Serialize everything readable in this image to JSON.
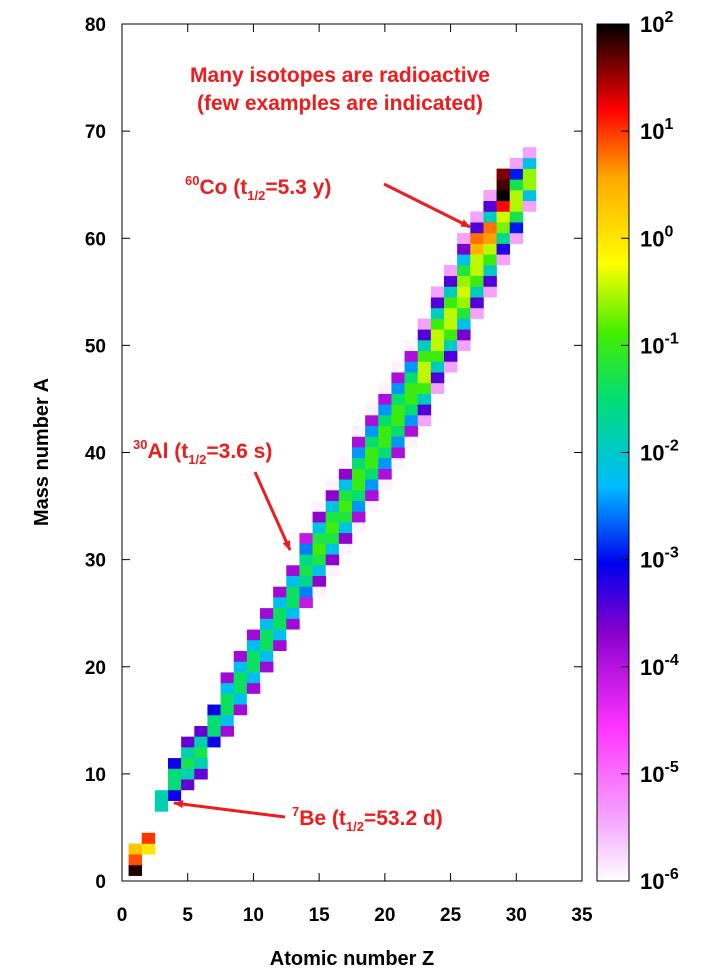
{
  "chart_data": {
    "type": "heatmap",
    "xlabel": "Atomic number Z",
    "ylabel": "Mass number A",
    "xlim": [
      0,
      35
    ],
    "ylim": [
      0,
      80
    ],
    "xticks": [
      "0",
      "5",
      "10",
      "15",
      "20",
      "25",
      "30",
      "35"
    ],
    "yticks": [
      "0",
      "10",
      "20",
      "30",
      "40",
      "50",
      "60",
      "70",
      "80"
    ],
    "colorbar": {
      "scale": "log",
      "range": [
        1e-06,
        100
      ],
      "labels": [
        {
          "base": "10",
          "exp": "2"
        },
        {
          "base": "10",
          "exp": "1"
        },
        {
          "base": "10",
          "exp": "0"
        },
        {
          "base": "10",
          "exp": "-1"
        },
        {
          "base": "10",
          "exp": "-2"
        },
        {
          "base": "10",
          "exp": "-3"
        },
        {
          "base": "10",
          "exp": "-4"
        },
        {
          "base": "10",
          "exp": "-5"
        },
        {
          "base": "10",
          "exp": "-6"
        }
      ],
      "colors": [
        "#ffffff",
        "#f5a8ff",
        "#ff33ff",
        "#8800cc",
        "#0000ee",
        "#00bbff",
        "#00dd77",
        "#44ee00",
        "#ffff00",
        "#ffaa00",
        "#ff0000",
        "#000000"
      ]
    },
    "band": [
      {
        "z": 1,
        "a_min": 1,
        "a_max": 3
      },
      {
        "z": 2,
        "a_min": 3,
        "a_max": 4
      },
      {
        "z": 3,
        "a_min": 6,
        "a_max": 9
      },
      {
        "z": 4,
        "a_min": 7,
        "a_max": 12
      },
      {
        "z": 5,
        "a_min": 8,
        "a_max": 14
      },
      {
        "z": 6,
        "a_min": 9,
        "a_max": 15
      },
      {
        "z": 7,
        "a_min": 12,
        "a_max": 17
      },
      {
        "z": 8,
        "a_min": 13,
        "a_max": 20
      },
      {
        "z": 9,
        "a_min": 15,
        "a_max": 22
      },
      {
        "z": 10,
        "a_min": 17,
        "a_max": 24
      },
      {
        "z": 11,
        "a_min": 19,
        "a_max": 26
      },
      {
        "z": 12,
        "a_min": 21,
        "a_max": 28
      },
      {
        "z": 13,
        "a_min": 23,
        "a_max": 30
      },
      {
        "z": 14,
        "a_min": 25,
        "a_max": 33
      },
      {
        "z": 15,
        "a_min": 27,
        "a_max": 35
      },
      {
        "z": 16,
        "a_min": 29,
        "a_max": 37
      },
      {
        "z": 17,
        "a_min": 31,
        "a_max": 39
      },
      {
        "z": 18,
        "a_min": 33,
        "a_max": 42
      },
      {
        "z": 19,
        "a_min": 35,
        "a_max": 44
      },
      {
        "z": 20,
        "a_min": 37,
        "a_max": 46
      },
      {
        "z": 21,
        "a_min": 39,
        "a_max": 48
      },
      {
        "z": 22,
        "a_min": 41,
        "a_max": 50
      },
      {
        "z": 23,
        "a_min": 43,
        "a_max": 52
      },
      {
        "z": 24,
        "a_min": 46,
        "a_max": 55
      },
      {
        "z": 25,
        "a_min": 48,
        "a_max": 57
      },
      {
        "z": 26,
        "a_min": 50,
        "a_max": 60
      },
      {
        "z": 27,
        "a_min": 53,
        "a_max": 62
      },
      {
        "z": 28,
        "a_min": 55,
        "a_max": 64
      },
      {
        "z": 29,
        "a_min": 58,
        "a_max": 66
      },
      {
        "z": 30,
        "a_min": 60,
        "a_max": 67
      },
      {
        "z": 31,
        "a_min": 63,
        "a_max": 68
      }
    ],
    "hot_cells": [
      {
        "z": 1,
        "a": 1,
        "value": 80
      },
      {
        "z": 1,
        "a": 2,
        "value": 8
      },
      {
        "z": 1,
        "a": 3,
        "value": 2
      },
      {
        "z": 2,
        "a": 3,
        "value": 1
      },
      {
        "z": 2,
        "a": 4,
        "value": 10
      },
      {
        "z": 27,
        "a": 59,
        "value": 3
      },
      {
        "z": 27,
        "a": 60,
        "value": 6
      },
      {
        "z": 28,
        "a": 60,
        "value": 4
      },
      {
        "z": 28,
        "a": 61,
        "value": 6
      },
      {
        "z": 29,
        "a": 63,
        "value": 15
      },
      {
        "z": 29,
        "a": 64,
        "value": 100
      },
      {
        "z": 29,
        "a": 65,
        "value": 60
      },
      {
        "z": 29,
        "a": 66,
        "value": 40
      }
    ],
    "annotations": [
      {
        "text": "Many isotopes are radioactive"
      },
      {
        "text": "(few examples are indicated)"
      },
      {
        "sup": "60",
        "main": "Co (t",
        "sub": "1/2",
        "tail": "=5.3 y)",
        "z": 27,
        "a": 60
      },
      {
        "sup": "30",
        "main": "Al (t",
        "sub": "1/2",
        "tail": "=3.6 s)",
        "z": 13,
        "a": 30
      },
      {
        "sup": "7",
        "main": "Be (t",
        "sub": "1/2",
        "tail": "=53.2 d)",
        "z": 4,
        "a": 7
      }
    ]
  }
}
